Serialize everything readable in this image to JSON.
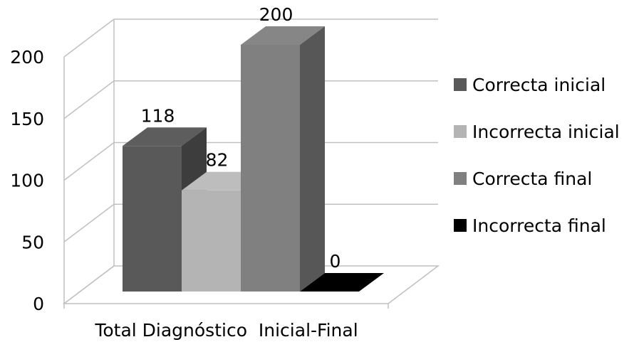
{
  "chart_data": {
    "type": "bar",
    "categories": [
      "Total Diagnóstico  Inicial-Final"
    ],
    "series": [
      {
        "name": "Correcta inicial",
        "values": [
          118
        ],
        "color": "#595959"
      },
      {
        "name": "Incorrecta inicial",
        "values": [
          82
        ],
        "color": "#b4b4b4"
      },
      {
        "name": "Correcta final",
        "values": [
          200
        ],
        "color": "#808080"
      },
      {
        "name": "Incorrecta final",
        "values": [
          0
        ],
        "color": "#000000"
      }
    ],
    "ylim": [
      0,
      200
    ],
    "yticks": [
      0,
      50,
      100,
      150,
      200
    ],
    "grid": true,
    "legend_position": "right",
    "three_d": true
  }
}
